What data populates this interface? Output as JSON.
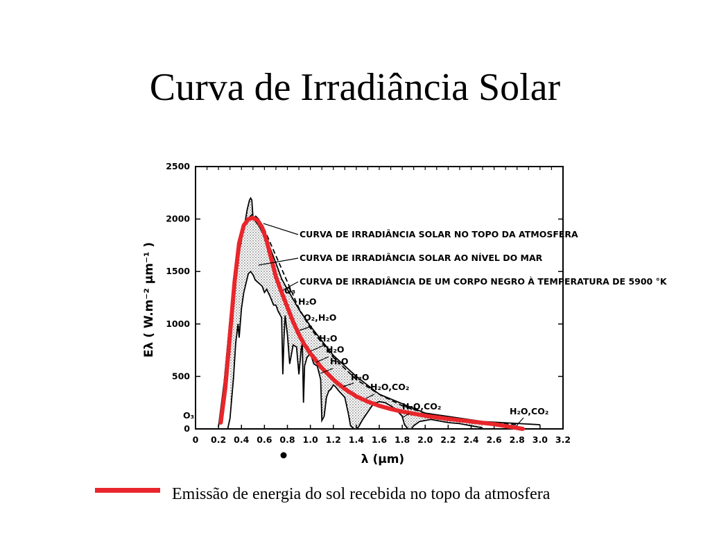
{
  "slide": {
    "title": "Curva de Irradiância Solar"
  },
  "legend": {
    "label": "Emissão de energia do sol recebida no topo da atmosfera",
    "color": "#e8262b"
  },
  "chart_data": {
    "type": "line",
    "xlabel": "λ (µm)",
    "ylabel": "Eλ ( W.m⁻² µm⁻¹ )",
    "xlim": [
      0,
      3.2
    ],
    "ylim": [
      0,
      2500
    ],
    "x_ticks": [
      "0",
      "0.2",
      "0.4",
      "0.6",
      "0.8",
      "1.0",
      "1.2",
      "1.4",
      "1.6",
      "1.8",
      "2.0",
      "2.2",
      "2.4",
      "2.6",
      "2.8",
      "3.0",
      "3.2"
    ],
    "y_ticks": [
      "0",
      "500",
      "1000",
      "1500",
      "2000",
      "2500"
    ],
    "grid": false,
    "curve_labels": [
      "CURVA DE IRRADIÂNCIA SOLAR NO TOPO DA ATMOSFERA",
      "CURVA DE IRRADIÂNCIA SOLAR AO NÍVEL DO MAR",
      "CURVA DE IRRADIÂNCIA DE UM CORPO NEGRO À TEMPERATURA DE 5900 °K"
    ],
    "absorption_labels": [
      "O₃",
      "O₃",
      "H₂O",
      "O₂,H₂O",
      "H₂O",
      "H₂O",
      "H₂O",
      "H₂O",
      "H₂O,CO₂",
      "H₂O,CO₂",
      "H₂O,CO₂"
    ],
    "series": [
      {
        "name": "Emissão de energia do sol recebida no topo da atmosfera",
        "style": "red-thick",
        "x": [
          0.22,
          0.26,
          0.3,
          0.34,
          0.38,
          0.42,
          0.46,
          0.5,
          0.54,
          0.58,
          0.62,
          0.66,
          0.7,
          0.75,
          0.8,
          0.85,
          0.9,
          0.95,
          1.0,
          1.1,
          1.2,
          1.3,
          1.4,
          1.5,
          1.6,
          1.7,
          1.8,
          2.0,
          2.2,
          2.4,
          2.6,
          2.85
        ],
        "y": [
          60,
          400,
          900,
          1400,
          1770,
          1940,
          2000,
          2010,
          1990,
          1920,
          1790,
          1620,
          1450,
          1300,
          1160,
          1020,
          900,
          800,
          720,
          580,
          470,
          380,
          310,
          260,
          220,
          190,
          165,
          125,
          95,
          70,
          45,
          0
        ]
      },
      {
        "style": "black-solid",
        "x": [
          0.2,
          0.25,
          0.3,
          0.35,
          0.4,
          0.43,
          0.45,
          0.47,
          0.48,
          0.49,
          0.5,
          0.52,
          0.55,
          0.6,
          0.65,
          0.7,
          0.75,
          0.8,
          0.9,
          1.0,
          1.2,
          1.4,
          1.6,
          1.8,
          2.0,
          2.5,
          3.0
        ],
        "y": [
          20,
          450,
          1050,
          1500,
          1800,
          1960,
          2090,
          2180,
          2200,
          2180,
          2020,
          1980,
          1940,
          1830,
          1720,
          1580,
          1430,
          1330,
          1140,
          980,
          700,
          500,
          330,
          240,
          150,
          70,
          40
        ]
      },
      {
        "style": "black-dashed",
        "x": [
          0.25,
          0.3,
          0.35,
          0.4,
          0.45,
          0.5,
          0.55,
          0.6,
          0.7,
          0.8,
          0.9,
          1.0,
          1.2,
          1.4,
          1.6,
          1.8,
          2.0,
          2.4,
          2.8
        ],
        "y": [
          450,
          1050,
          1550,
          1850,
          2000,
          2050,
          2000,
          1900,
          1650,
          1400,
          1150,
          960,
          680,
          470,
          330,
          220,
          150,
          80,
          40
        ]
      },
      {
        "style": "black-sea-level",
        "x": [
          0.28,
          0.3,
          0.33,
          0.35,
          0.37,
          0.38,
          0.4,
          0.42,
          0.44,
          0.46,
          0.48,
          0.5,
          0.52,
          0.55,
          0.58,
          0.6,
          0.62,
          0.65,
          0.68,
          0.7,
          0.72,
          0.75,
          0.76,
          0.77,
          0.78,
          0.8,
          0.82,
          0.85,
          0.88,
          0.9,
          0.92,
          0.93,
          0.94,
          0.95,
          0.97,
          1.0,
          1.03,
          1.06,
          1.09,
          1.1,
          1.12,
          1.14,
          1.16,
          1.18,
          1.2,
          1.22,
          1.25,
          1.3,
          1.33,
          1.35,
          1.38,
          1.4,
          1.42,
          1.45,
          1.5,
          1.55,
          1.6,
          1.65,
          1.7,
          1.75,
          1.8,
          1.82,
          1.85,
          1.88,
          1.9,
          1.95,
          2.0,
          2.05,
          2.1,
          2.2,
          2.3,
          2.4,
          2.5
        ],
        "y": [
          0,
          100,
          480,
          820,
          1000,
          870,
          1150,
          1300,
          1390,
          1480,
          1500,
          1470,
          1420,
          1390,
          1360,
          1300,
          1330,
          1260,
          1180,
          1180,
          1120,
          1060,
          520,
          850,
          1080,
          900,
          620,
          800,
          780,
          520,
          760,
          820,
          250,
          600,
          680,
          720,
          620,
          600,
          470,
          80,
          120,
          300,
          360,
          380,
          420,
          400,
          360,
          300,
          150,
          30,
          0,
          0,
          20,
          80,
          160,
          240,
          260,
          250,
          220,
          180,
          120,
          40,
          0,
          0,
          30,
          70,
          80,
          90,
          80,
          60,
          50,
          30,
          10
        ]
      }
    ]
  }
}
